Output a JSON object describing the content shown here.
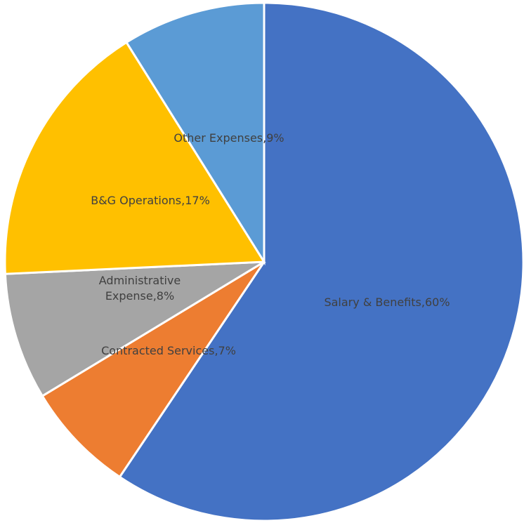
{
  "chart_data": {
    "type": "pie",
    "title": "",
    "start_angle_deg": 0,
    "direction": "clockwise",
    "slices": [
      {
        "name": "Salary & Benefits",
        "value": 60,
        "color": "#4472C4",
        "label_lines": [
          "Salary & Benefits,60%"
        ]
      },
      {
        "name": "Contracted Services",
        "value": 7,
        "color": "#ED7D31",
        "label_lines": [
          "Contracted Services,7%"
        ]
      },
      {
        "name": "Administrative Expense",
        "value": 8,
        "color": "#A5A5A5",
        "label_lines": [
          "Administrative",
          "Expense,8%"
        ]
      },
      {
        "name": "B&G Operations",
        "value": 17,
        "color": "#FFC000",
        "label_lines": [
          "B&G Operations,17%"
        ]
      },
      {
        "name": "Other Expenses",
        "value": 9,
        "color": "#5B9BD5",
        "label_lines": [
          "Other Expenses,9%"
        ]
      }
    ]
  }
}
